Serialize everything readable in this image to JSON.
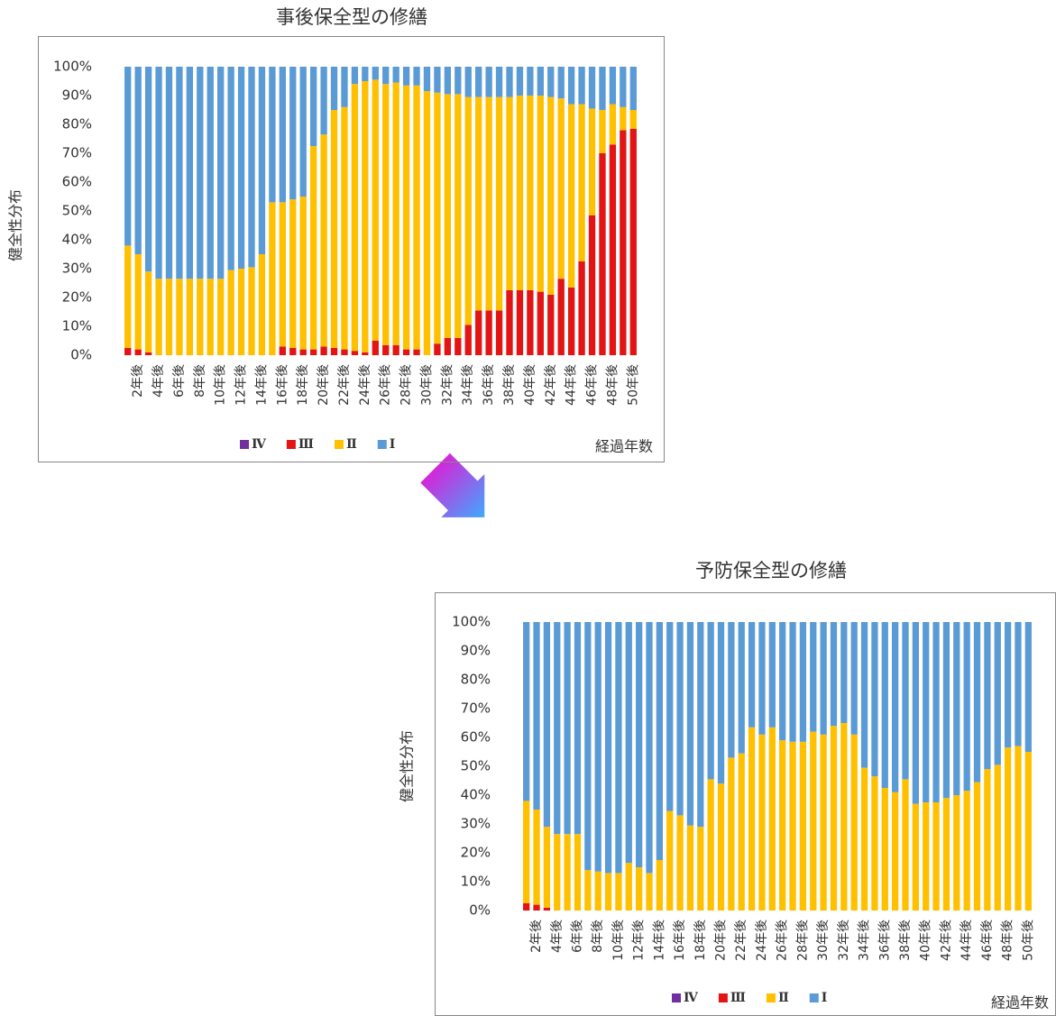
{
  "chart_data": [
    {
      "type": "bar",
      "stacked": true,
      "title": "事後保全型の修繕",
      "y_label": "健全性分布",
      "x_label": "経過年数",
      "legend": "bottom",
      "grid": false,
      "categories": [
        null,
        "2年後",
        null,
        "4年後",
        null,
        "6年後",
        null,
        "8年後",
        null,
        "10年後",
        null,
        "12年後",
        null,
        "14年後",
        null,
        "16年後",
        null,
        "18年後",
        null,
        "20年後",
        null,
        "22年後",
        null,
        "24年後",
        null,
        "26年後",
        null,
        "28年後",
        null,
        "30年後",
        null,
        "32年後",
        null,
        "34年後",
        null,
        "36年後",
        null,
        "38年後",
        null,
        "40年後",
        null,
        "42年後",
        null,
        "44年後",
        null,
        "46年後",
        null,
        "48年後",
        null,
        "50年後"
      ],
      "series": [
        {
          "name": "Ⅳ",
          "color": "#7030a0",
          "values": [
            0,
            0,
            0,
            0,
            0,
            0,
            0,
            0,
            0,
            0,
            0,
            0,
            0,
            0,
            0,
            0,
            0,
            0,
            0,
            0,
            0,
            0,
            0,
            0,
            0,
            0,
            0,
            0,
            0,
            0,
            0,
            0,
            0,
            0,
            0,
            0,
            0,
            0,
            0,
            0,
            0,
            0,
            0,
            0,
            0,
            0,
            0,
            0,
            0,
            0
          ]
        },
        {
          "name": "Ⅲ",
          "color": "#e31414",
          "values": [
            2.5,
            2,
            1,
            0,
            0,
            0,
            0,
            0,
            0,
            0,
            0,
            0,
            0,
            0,
            0,
            3,
            2.5,
            2,
            2,
            3,
            2.5,
            2,
            1.5,
            1,
            5,
            3.5,
            3.5,
            2,
            2,
            0,
            4,
            6,
            6,
            10.5,
            15.5,
            15.5,
            15.5,
            22.5,
            22.5,
            22.5,
            22,
            21,
            26.5,
            23.5,
            32.5,
            48.5,
            70,
            73,
            78,
            78.5
          ]
        },
        {
          "name": "Ⅱ",
          "color": "#ffc000",
          "values": [
            35.5,
            33,
            28,
            26.5,
            26.5,
            26.5,
            26.5,
            26.5,
            26.5,
            26.5,
            29.5,
            30,
            30.5,
            35,
            53,
            50,
            51.5,
            53,
            70.5,
            73.5,
            82.5,
            84,
            92.5,
            94,
            90.5,
            90.5,
            91,
            91.5,
            91.5,
            91.5,
            87,
            84.5,
            84.5,
            79,
            74,
            74,
            74,
            67,
            67.5,
            67.5,
            68,
            68.5,
            62.5,
            63.5,
            54.5,
            37,
            15,
            14,
            8,
            6.5
          ]
        },
        {
          "name": "Ⅰ",
          "color": "#5b9bd5",
          "values": [
            62,
            65,
            71,
            73.5,
            73.5,
            73.5,
            73.5,
            73.5,
            73.5,
            73.5,
            70.5,
            70,
            69.5,
            65,
            47,
            47,
            46,
            45,
            27.5,
            23.5,
            15,
            14,
            6,
            5,
            4.5,
            6,
            5.5,
            6.5,
            6.5,
            8.5,
            9,
            9.5,
            9.5,
            10.5,
            10.5,
            10.5,
            10.5,
            10.5,
            10,
            10,
            10,
            10.5,
            11,
            13,
            13,
            14.5,
            15,
            13,
            14,
            15
          ]
        }
      ],
      "ylim": [
        0,
        100
      ],
      "yticks": [
        {
          "value": 0,
          "label": "0%"
        },
        {
          "value": 10,
          "label": "10%"
        },
        {
          "value": 20,
          "label": "20%"
        },
        {
          "value": 30,
          "label": "30%"
        },
        {
          "value": 40,
          "label": "40%"
        },
        {
          "value": 50,
          "label": "50%"
        },
        {
          "value": 60,
          "label": "60%"
        },
        {
          "value": 70,
          "label": "70%"
        },
        {
          "value": 80,
          "label": "80%"
        },
        {
          "value": 90,
          "label": "90%"
        },
        {
          "value": 100,
          "label": "100%"
        }
      ]
    },
    {
      "type": "bar",
      "stacked": true,
      "title": "予防保全型の修繕",
      "y_label": "健全性分布",
      "x_label": "経過年数",
      "legend": "bottom",
      "grid": false,
      "categories": [
        null,
        "2年後",
        null,
        "4年後",
        null,
        "6年後",
        null,
        "8年後",
        null,
        "10年後",
        null,
        "12年後",
        null,
        "14年後",
        null,
        "16年後",
        null,
        "18年後",
        null,
        "20年後",
        null,
        "22年後",
        null,
        "24年後",
        null,
        "26年後",
        null,
        "28年後",
        null,
        "30年後",
        null,
        "32年後",
        null,
        "34年後",
        null,
        "36年後",
        null,
        "38年後",
        null,
        "40年後",
        null,
        "42年後",
        null,
        "44年後",
        null,
        "46年後",
        null,
        "48年後",
        null,
        "50年後"
      ],
      "series": [
        {
          "name": "Ⅳ",
          "color": "#7030a0",
          "values": [
            0,
            0,
            0,
            0,
            0,
            0,
            0,
            0,
            0,
            0,
            0,
            0,
            0,
            0,
            0,
            0,
            0,
            0,
            0,
            0,
            0,
            0,
            0,
            0,
            0,
            0,
            0,
            0,
            0,
            0,
            0,
            0,
            0,
            0,
            0,
            0,
            0,
            0,
            0,
            0,
            0,
            0,
            0,
            0,
            0,
            0,
            0,
            0,
            0,
            0
          ]
        },
        {
          "name": "Ⅲ",
          "color": "#e31414",
          "values": [
            2.5,
            2,
            1,
            0,
            0,
            0,
            0,
            0,
            0,
            0,
            0,
            0,
            0,
            0,
            0,
            0,
            0,
            0,
            0,
            0,
            0,
            0,
            0,
            0,
            0,
            0,
            0,
            0,
            0,
            0,
            0,
            0,
            0,
            0,
            0,
            0,
            0,
            0,
            0,
            0,
            0,
            0,
            0,
            0,
            0,
            0,
            0,
            0,
            0,
            0
          ]
        },
        {
          "name": "Ⅱ",
          "color": "#ffc000",
          "values": [
            35.5,
            33,
            28,
            26.5,
            26.5,
            26.5,
            14,
            13.5,
            13,
            13,
            16.5,
            15,
            13,
            17.5,
            34.5,
            33,
            29.5,
            29,
            45.5,
            44,
            53,
            54.5,
            63.5,
            61,
            63.5,
            59,
            58.5,
            58.5,
            62,
            61,
            64,
            65,
            61,
            49.5,
            46.5,
            42.5,
            41,
            45.5,
            37,
            37.5,
            37.5,
            39,
            40,
            41.5,
            44.5,
            49,
            50.5,
            56.5,
            57,
            55
          ]
        },
        {
          "name": "Ⅰ",
          "color": "#5b9bd5",
          "values": [
            62,
            65,
            71,
            73.5,
            73.5,
            73.5,
            86,
            86.5,
            87,
            87,
            83.5,
            85,
            87,
            82.5,
            65.5,
            67,
            70.5,
            71,
            54.5,
            56,
            47,
            45.5,
            36.5,
            39,
            36.5,
            41,
            41.5,
            41.5,
            38,
            39,
            36,
            35,
            39,
            50.5,
            53.5,
            57.5,
            59,
            54.5,
            63,
            62.5,
            62.5,
            61,
            60,
            58.5,
            55.5,
            51,
            49.5,
            43.5,
            43,
            45
          ]
        }
      ],
      "ylim": [
        0,
        100
      ],
      "yticks": [
        {
          "value": 0,
          "label": "0%"
        },
        {
          "value": 10,
          "label": "10%"
        },
        {
          "value": 20,
          "label": "20%"
        },
        {
          "value": 30,
          "label": "30%"
        },
        {
          "value": 40,
          "label": "40%"
        },
        {
          "value": 50,
          "label": "50%"
        },
        {
          "value": 60,
          "label": "60%"
        },
        {
          "value": 70,
          "label": "70%"
        },
        {
          "value": 80,
          "label": "80%"
        },
        {
          "value": 90,
          "label": "90%"
        },
        {
          "value": 100,
          "label": "100%"
        }
      ]
    }
  ]
}
